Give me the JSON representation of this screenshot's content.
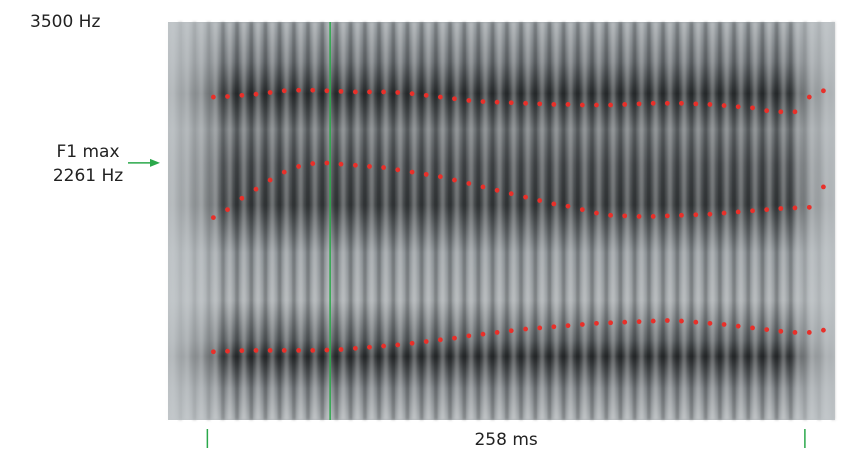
{
  "chart_data": {
    "type": "spectrogram",
    "ylim": [
      0,
      3500
    ],
    "yticks": [
      {
        "value": 3500,
        "label": "3500 Hz"
      }
    ],
    "xlim": [
      -17,
      271
    ],
    "x": [
      2.6,
      8.7,
      14.9,
      21.0,
      27.1,
      33.2,
      39.4,
      45.5,
      51.6,
      57.7,
      63.9,
      70.0,
      76.1,
      82.2,
      88.4,
      94.5,
      100.6,
      106.7,
      112.9,
      119.0,
      125.1,
      131.2,
      137.4,
      143.5,
      149.6,
      155.7,
      161.9,
      168.0,
      174.1,
      180.2,
      186.4,
      192.5,
      198.6,
      204.7,
      210.9,
      217.0,
      223.1,
      229.2,
      235.4,
      241.5,
      247.6,
      253.7,
      259.9,
      266.0
    ],
    "series": [
      {
        "color": "#e8302a",
        "values": [
          2840,
          2845,
          2855,
          2865,
          2880,
          2895,
          2900,
          2900,
          2895,
          2890,
          2885,
          2885,
          2885,
          2880,
          2870,
          2855,
          2840,
          2825,
          2810,
          2800,
          2795,
          2790,
          2785,
          2780,
          2775,
          2775,
          2770,
          2770,
          2770,
          2775,
          2780,
          2785,
          2785,
          2785,
          2780,
          2775,
          2765,
          2755,
          2745,
          2720,
          2710,
          2710,
          2840,
          2895
        ]
      },
      {
        "color": "#e8302a",
        "values": [
          1780,
          1850,
          1950,
          2030,
          2110,
          2180,
          2230,
          2255,
          2260,
          2250,
          2240,
          2230,
          2220,
          2200,
          2180,
          2160,
          2140,
          2110,
          2080,
          2050,
          2020,
          1990,
          1960,
          1930,
          1900,
          1880,
          1850,
          1820,
          1800,
          1795,
          1790,
          1790,
          1795,
          1800,
          1805,
          1810,
          1820,
          1830,
          1840,
          1850,
          1860,
          1865,
          1870,
          2050
        ]
      },
      {
        "color": "#e8302a",
        "values": [
          600,
          605,
          610,
          612,
          612,
          612,
          612,
          612,
          615,
          620,
          630,
          640,
          650,
          660,
          675,
          690,
          705,
          720,
          740,
          755,
          770,
          785,
          800,
          810,
          820,
          830,
          840,
          850,
          855,
          860,
          865,
          870,
          875,
          870,
          860,
          850,
          840,
          825,
          810,
          795,
          780,
          770,
          770,
          790
        ]
      }
    ],
    "cursor_x": 53,
    "annotation": {
      "lines": [
        "F1 max",
        "2261 Hz"
      ],
      "value": 2261,
      "color": "#2aa84a"
    },
    "duration": {
      "start": 0,
      "end": 258,
      "label": "258 ms",
      "color": "#2aa84a"
    }
  }
}
